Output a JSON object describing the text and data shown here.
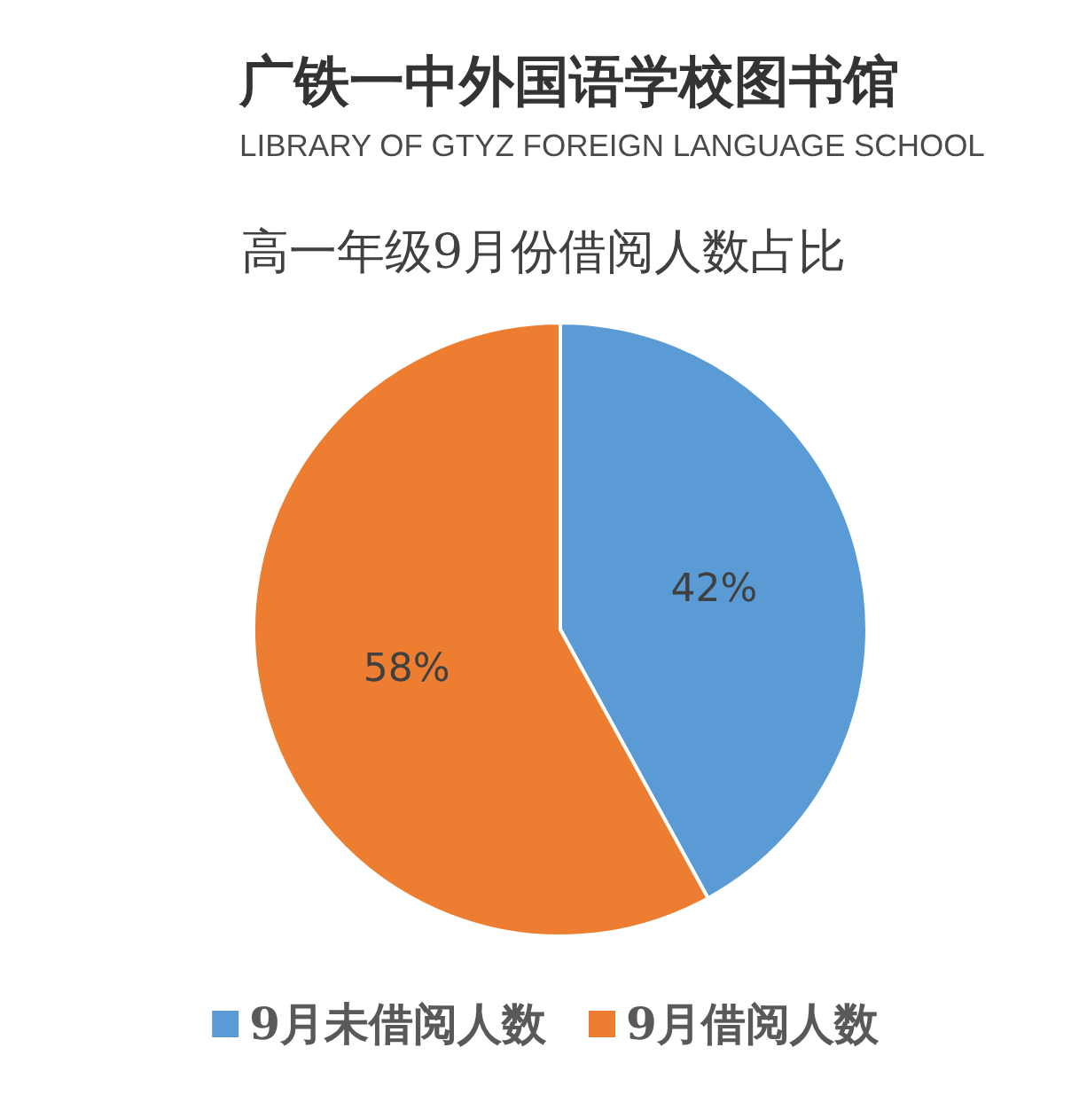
{
  "chart_data": {
    "type": "pie",
    "title": "高一年级9月份借阅人数占比",
    "annotations": [
      "广铁一中外国语学校图书馆",
      "LIBRARY OF GTYZ FOREIGN LANGUAGE SCHOOL"
    ],
    "categories": [
      "9月未借阅人数",
      "9月借阅人数"
    ],
    "values": [
      42,
      58
    ],
    "colors": [
      "#5b9bd5",
      "#ed7d31"
    ],
    "value_labels": [
      "42%",
      "58%"
    ],
    "legend": "bottom"
  }
}
